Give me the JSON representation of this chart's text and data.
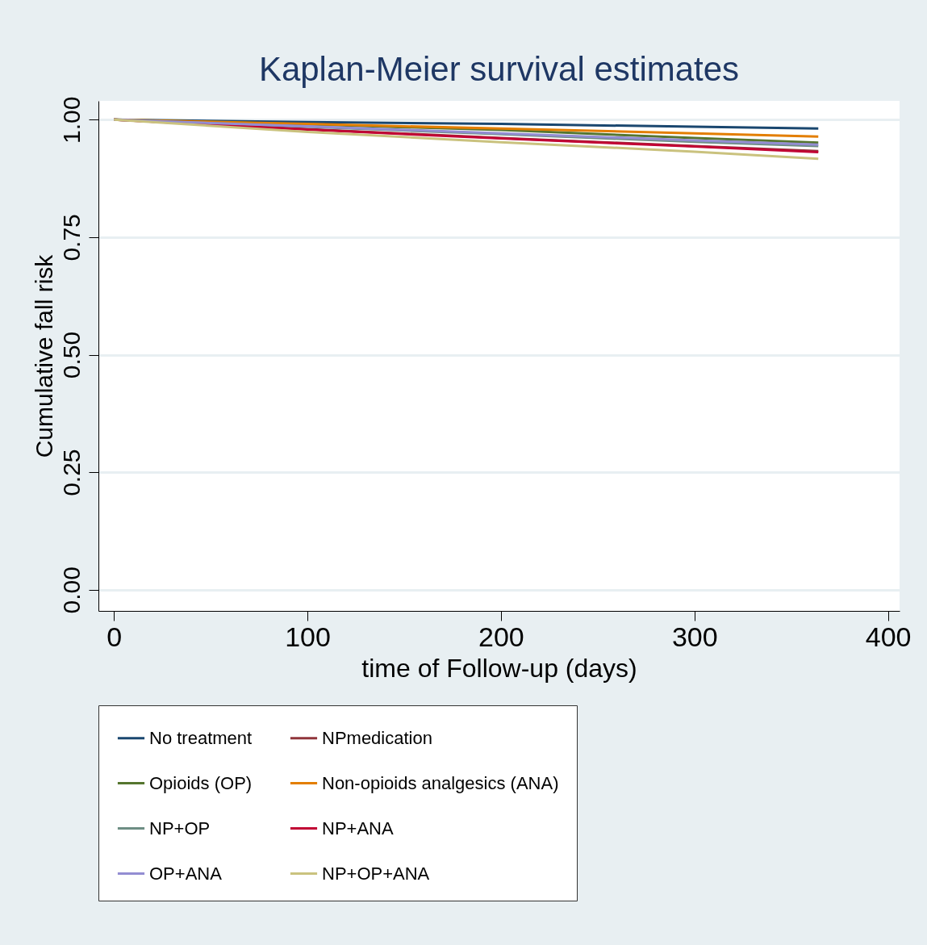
{
  "chart_data": {
    "type": "line",
    "title": "Kaplan-Meier survival estimates",
    "xlabel": "time of Follow-up (days)",
    "ylabel": "Cumulative fall risk",
    "x": [
      0,
      100,
      200,
      300,
      364
    ],
    "series": [
      {
        "name": "No treatment",
        "color": "#1a476f",
        "values": [
          1,
          0.995,
          0.991,
          0.985,
          0.981
        ]
      },
      {
        "name": "NPmedication",
        "color": "#90353b",
        "values": [
          1,
          0.98,
          0.961,
          0.944,
          0.933
        ]
      },
      {
        "name": "Opioids (OP)",
        "color": "#55752f",
        "values": [
          1,
          0.99,
          0.978,
          0.961,
          0.951
        ]
      },
      {
        "name": "Non-opioids analgesics (ANA)",
        "color": "#e37e00",
        "values": [
          1,
          0.991,
          0.981,
          0.971,
          0.964
        ]
      },
      {
        "name": "NP+OP",
        "color": "#6e8e84",
        "values": [
          1,
          0.985,
          0.969,
          0.953,
          0.944
        ]
      },
      {
        "name": "NP+ANA",
        "color": "#c10534",
        "values": [
          1,
          0.979,
          0.96,
          0.943,
          0.931
        ]
      },
      {
        "name": "OP+ANA",
        "color": "#938dd2",
        "values": [
          1,
          0.986,
          0.971,
          0.956,
          0.947
        ]
      },
      {
        "name": "NP+OP+ANA",
        "color": "#cac27e",
        "values": [
          1,
          0.974,
          0.952,
          0.932,
          0.917
        ]
      }
    ],
    "xlim": [
      -8,
      406
    ],
    "xticks": [
      0,
      100,
      200,
      300,
      400
    ],
    "ylim": [
      -0.045,
      1.04
    ],
    "yticks": [
      {
        "value": 0,
        "label": "0.00"
      },
      {
        "value": 0.25,
        "label": "0.25"
      },
      {
        "value": 0.5,
        "label": "0.50"
      },
      {
        "value": 0.75,
        "label": "0.75"
      },
      {
        "value": 1,
        "label": "1.00"
      }
    ],
    "grid": "y",
    "legend": "bottom",
    "line_style": "solid",
    "marker": "none"
  }
}
